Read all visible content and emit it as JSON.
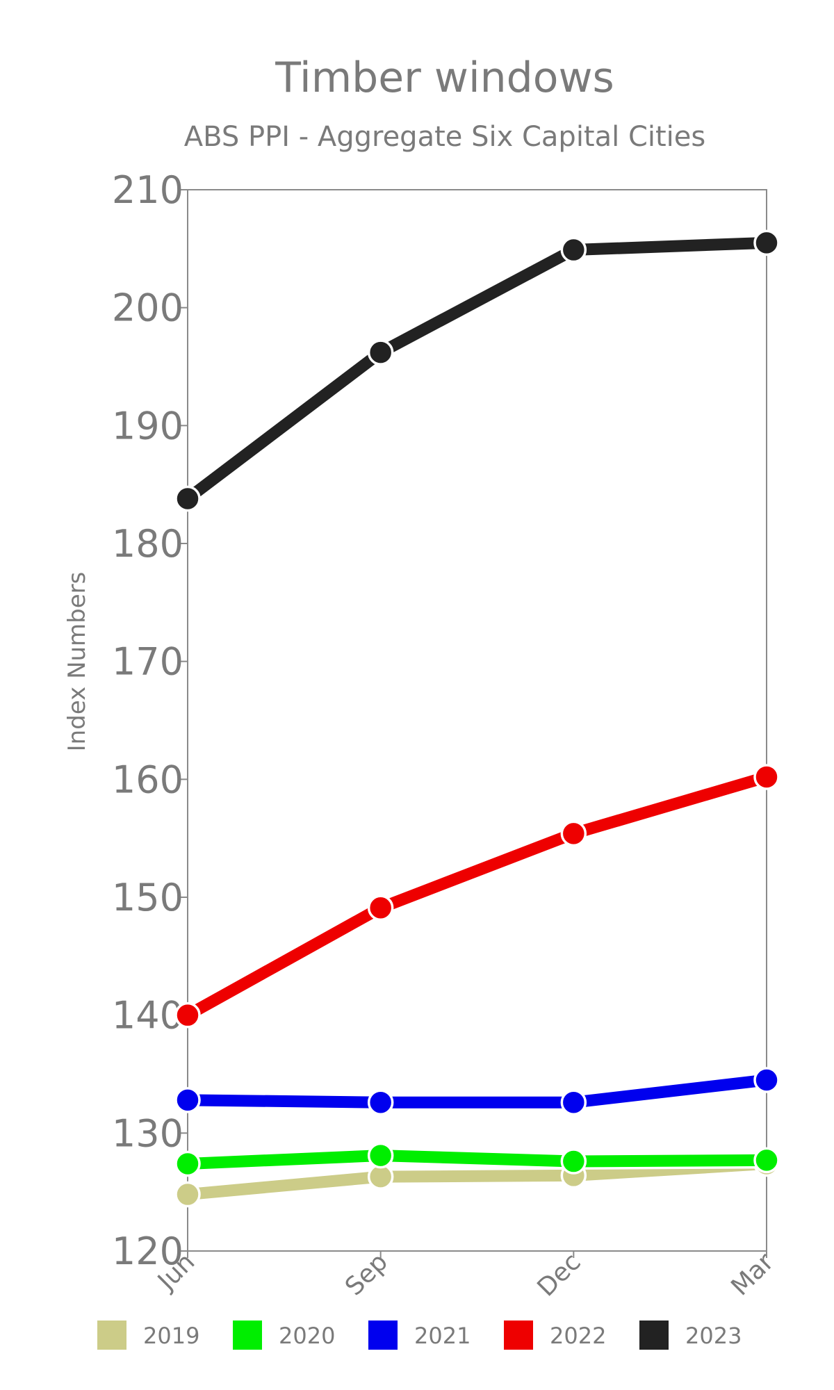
{
  "chart_data": {
    "type": "line",
    "title": "Timber windows",
    "subtitle": "ABS PPI - Aggregate Six Capital Cities",
    "xlabel": "",
    "ylabel": "Index Numbers",
    "categories": [
      "Jun",
      "Sep",
      "Dec",
      "Mar"
    ],
    "ylim": [
      120,
      210
    ],
    "yticks": [
      120,
      130,
      140,
      150,
      160,
      170,
      180,
      190,
      200,
      210
    ],
    "grid": false,
    "legend_position": "bottom",
    "series": [
      {
        "name": "2019",
        "color": "#cccc88",
        "values": [
          124.8,
          126.3,
          126.4,
          127.4
        ]
      },
      {
        "name": "2020",
        "color": "#00ee00",
        "values": [
          127.4,
          128.1,
          127.6,
          127.7
        ]
      },
      {
        "name": "2021",
        "color": "#0000ee",
        "values": [
          132.8,
          132.6,
          132.6,
          134.5
        ]
      },
      {
        "name": "2022",
        "color": "#ee0000",
        "values": [
          140.0,
          149.1,
          155.4,
          160.2
        ]
      },
      {
        "name": "2023",
        "color": "#222222",
        "values": [
          183.8,
          196.2,
          204.9,
          205.5
        ]
      }
    ]
  }
}
